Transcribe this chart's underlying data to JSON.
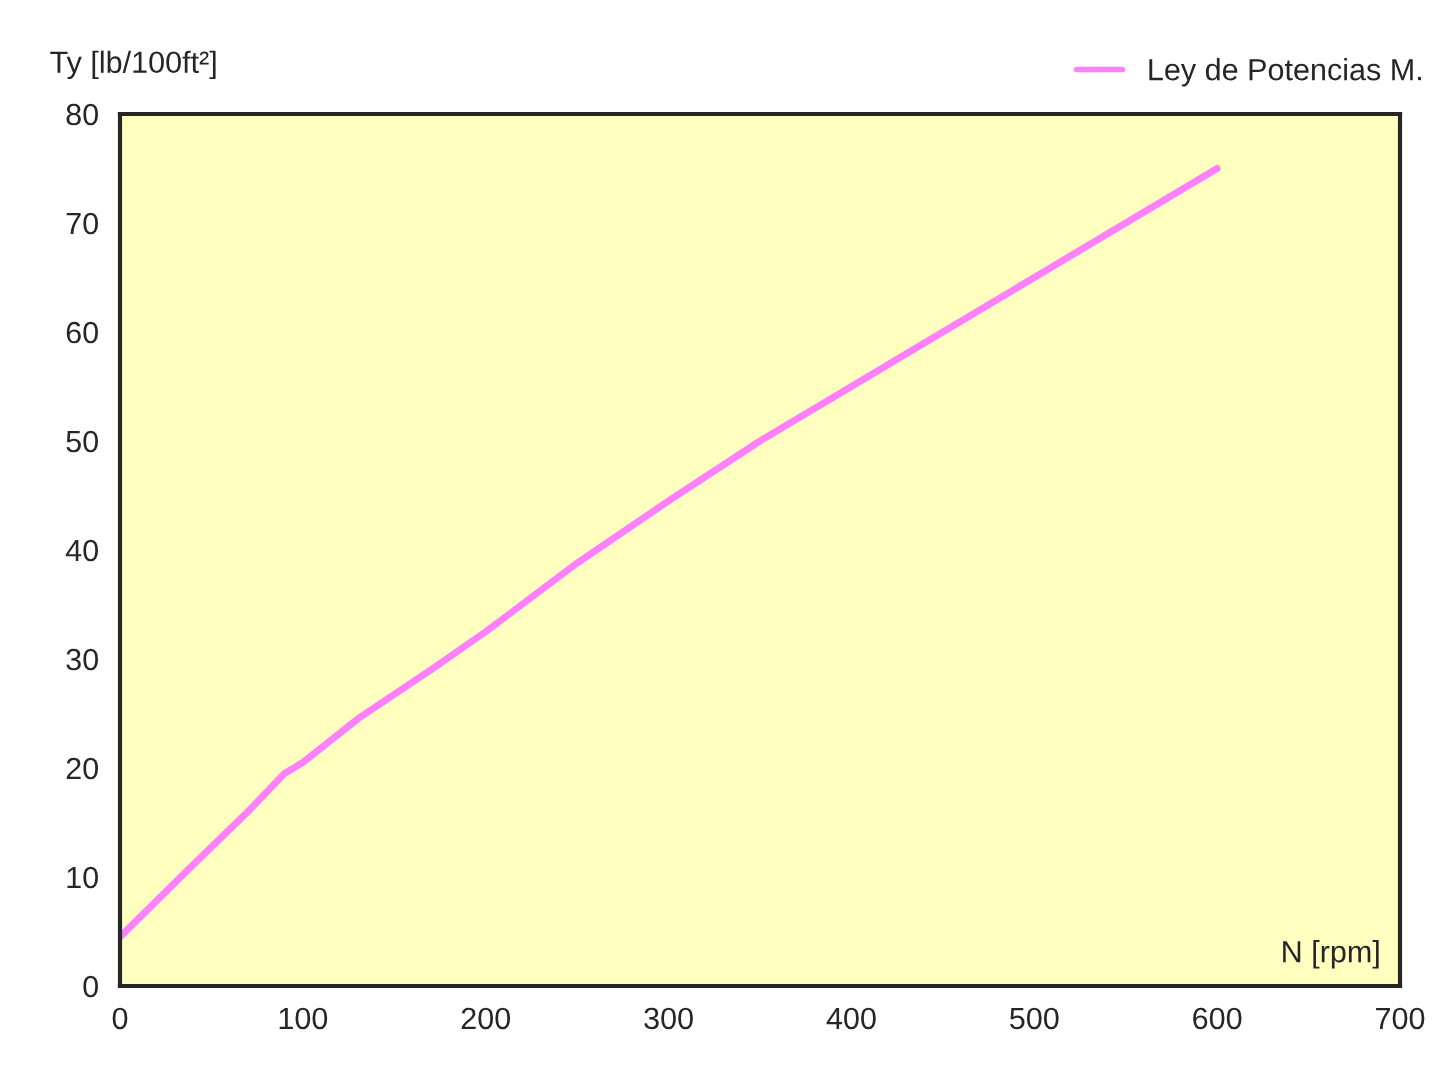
{
  "chart_data": {
    "type": "line",
    "xlabel": "N [rpm]",
    "ylabel": "Ty [lb/100ft²]",
    "x": [
      0,
      35,
      70,
      90,
      100,
      130,
      170,
      200,
      250,
      300,
      350,
      400,
      450,
      500,
      550,
      600
    ],
    "series": [
      {
        "name": "Ley de Potencias M.",
        "color": "#ff80ff",
        "values": [
          4.5,
          10.3,
          16,
          19.5,
          20.5,
          24.5,
          29,
          32.5,
          38.8,
          44.5,
          50,
          55,
          60,
          65,
          70,
          75
        ]
      }
    ],
    "xlim": [
      0,
      700
    ],
    "ylim": [
      0,
      80
    ],
    "xticks": [
      0,
      100,
      200,
      300,
      400,
      500,
      600,
      700
    ],
    "yticks": [
      0,
      10,
      20,
      30,
      40,
      50,
      60,
      70,
      80
    ],
    "grid": false,
    "legend": "top right",
    "marker": "none",
    "line_style": "solid"
  }
}
